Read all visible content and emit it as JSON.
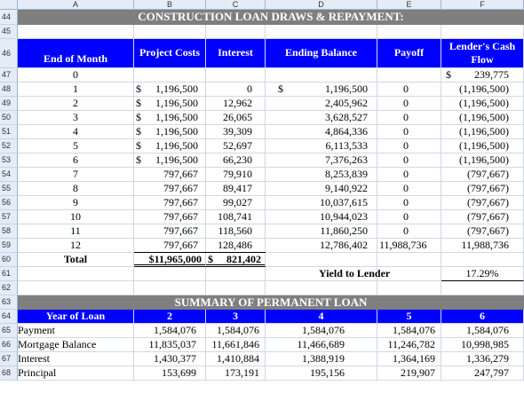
{
  "columns": [
    "A",
    "B",
    "C",
    "D",
    "E",
    "F"
  ],
  "rows": {
    "r44": "44",
    "r45": "45",
    "r46": "46",
    "r47": "47",
    "r48": "48",
    "r49": "49",
    "r50": "50",
    "r51": "51",
    "r52": "52",
    "r53": "53",
    "r54": "54",
    "r55": "55",
    "r56": "56",
    "r57": "57",
    "r58": "58",
    "r59": "59",
    "r60": "60",
    "r61": "61",
    "r62": "62",
    "r63": "63",
    "r64": "64",
    "r65": "65",
    "r66": "66",
    "r67": "67",
    "r68": "68"
  },
  "draws": {
    "title": "CONSTRUCTION LOAN DRAWS & REPAYMENT:",
    "headers": {
      "end_of_month": "End of Month",
      "project_costs": "Project Costs",
      "interest": "Interest",
      "ending_balance": "Ending Balance",
      "payoff": "Payoff",
      "lenders_cash_flow_1": "Lender's Cash",
      "lenders_cash_flow_2": "Flow"
    },
    "rows": [
      {
        "month": "0",
        "cost_sym": "",
        "cost": "",
        "interest": "",
        "bal_sym": "",
        "balance": "",
        "payoff": "",
        "cf_sym": "$",
        "cf": "239,775"
      },
      {
        "month": "1",
        "cost_sym": "$",
        "cost": "1,196,500",
        "interest": "0",
        "bal_sym": "$",
        "balance": "1,196,500",
        "payoff": "0",
        "cf_sym": "",
        "cf": "(1,196,500)"
      },
      {
        "month": "2",
        "cost_sym": "$",
        "cost": "1,196,500",
        "interest": "12,962",
        "bal_sym": "",
        "balance": "2,405,962",
        "payoff": "0",
        "cf_sym": "",
        "cf": "(1,196,500)"
      },
      {
        "month": "3",
        "cost_sym": "$",
        "cost": "1,196,500",
        "interest": "26,065",
        "bal_sym": "",
        "balance": "3,628,527",
        "payoff": "0",
        "cf_sym": "",
        "cf": "(1,196,500)"
      },
      {
        "month": "4",
        "cost_sym": "$",
        "cost": "1,196,500",
        "interest": "39,309",
        "bal_sym": "",
        "balance": "4,864,336",
        "payoff": "0",
        "cf_sym": "",
        "cf": "(1,196,500)"
      },
      {
        "month": "5",
        "cost_sym": "$",
        "cost": "1,196,500",
        "interest": "52,697",
        "bal_sym": "",
        "balance": "6,113,533",
        "payoff": "0",
        "cf_sym": "",
        "cf": "(1,196,500)"
      },
      {
        "month": "6",
        "cost_sym": "$",
        "cost": "1,196,500",
        "interest": "66,230",
        "bal_sym": "",
        "balance": "7,376,263",
        "payoff": "0",
        "cf_sym": "",
        "cf": "(1,196,500)"
      },
      {
        "month": "7",
        "cost_sym": "",
        "cost": "797,667",
        "interest": "79,910",
        "bal_sym": "",
        "balance": "8,253,839",
        "payoff": "0",
        "cf_sym": "",
        "cf": "(797,667)"
      },
      {
        "month": "8",
        "cost_sym": "",
        "cost": "797,667",
        "interest": "89,417",
        "bal_sym": "",
        "balance": "9,140,922",
        "payoff": "0",
        "cf_sym": "",
        "cf": "(797,667)"
      },
      {
        "month": "9",
        "cost_sym": "",
        "cost": "797,667",
        "interest": "99,027",
        "bal_sym": "",
        "balance": "10,037,615",
        "payoff": "0",
        "cf_sym": "",
        "cf": "(797,667)"
      },
      {
        "month": "10",
        "cost_sym": "",
        "cost": "797,667",
        "interest": "108,741",
        "bal_sym": "",
        "balance": "10,944,023",
        "payoff": "0",
        "cf_sym": "",
        "cf": "(797,667)"
      },
      {
        "month": "11",
        "cost_sym": "",
        "cost": "797,667",
        "interest": "118,560",
        "bal_sym": "",
        "balance": "11,860,250",
        "payoff": "0",
        "cf_sym": "",
        "cf": "(797,667)"
      },
      {
        "month": "12",
        "cost_sym": "",
        "cost": "797,667",
        "interest": "128,486",
        "bal_sym": "",
        "balance": "12,786,402",
        "payoff": "11,988,736",
        "cf_sym": "",
        "cf": "11,988,736"
      }
    ],
    "total_label": "Total",
    "total_cost": "$11,965,000",
    "total_int_sym": "$",
    "total_interest": "821,402",
    "yield_label": "Yield to Lender",
    "yield_value": "17.29%"
  },
  "summary": {
    "title": "SUMMARY OF PERMANENT LOAN",
    "year_label": "Year of Loan",
    "years": [
      "2",
      "3",
      "4",
      "5",
      "6"
    ],
    "rows": [
      {
        "label": "Payment",
        "values": [
          "1,584,076",
          "1,584,076",
          "1,584,076",
          "1,584,076",
          "1,584,076"
        ]
      },
      {
        "label": "Mortgage Balance",
        "values": [
          "11,835,037",
          "11,661,846",
          "11,466,689",
          "11,246,782",
          "10,998,985"
        ]
      },
      {
        "label": "Interest",
        "values": [
          "1,430,377",
          "1,410,884",
          "1,388,919",
          "1,364,169",
          "1,336,279"
        ]
      },
      {
        "label": "Principal",
        "values": [
          "153,699",
          "173,191",
          "195,156",
          "219,907",
          "247,797"
        ]
      }
    ]
  },
  "colors": {
    "title_band": "#7f7f7f",
    "header_blue": "#0000ff",
    "grid": "#d0d7e5",
    "header_bg": "#e4ecf7"
  }
}
